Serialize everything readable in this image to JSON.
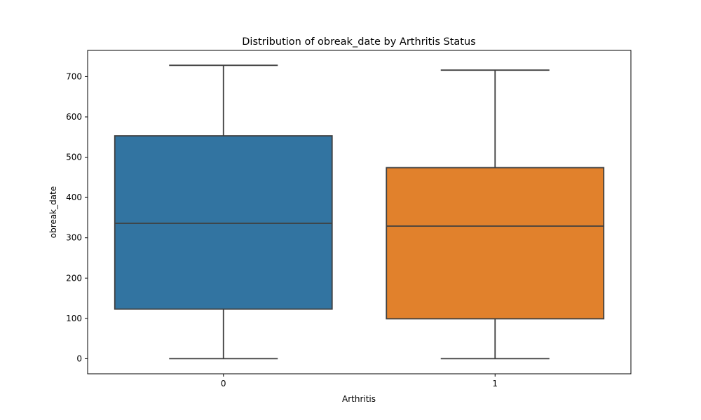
{
  "chart_data": {
    "type": "box",
    "title": "Distribution of obreak_date by Arthritis Status",
    "xlabel": "Arthritis",
    "ylabel": "obreak_date",
    "categories": [
      "0",
      "1"
    ],
    "boxes": [
      {
        "category": "0",
        "min": 0,
        "q1": 123,
        "median": 336,
        "q3": 553,
        "max": 728,
        "color": "#3274a1"
      },
      {
        "category": "1",
        "min": 0,
        "q1": 99,
        "median": 329,
        "q3": 474,
        "max": 716,
        "color": "#e1812c"
      }
    ],
    "ylim": [
      -37.5,
      765
    ],
    "yticks": [
      0,
      100,
      200,
      300,
      400,
      500,
      600,
      700
    ],
    "grid": false,
    "edge_color": "#3f3f3f"
  }
}
